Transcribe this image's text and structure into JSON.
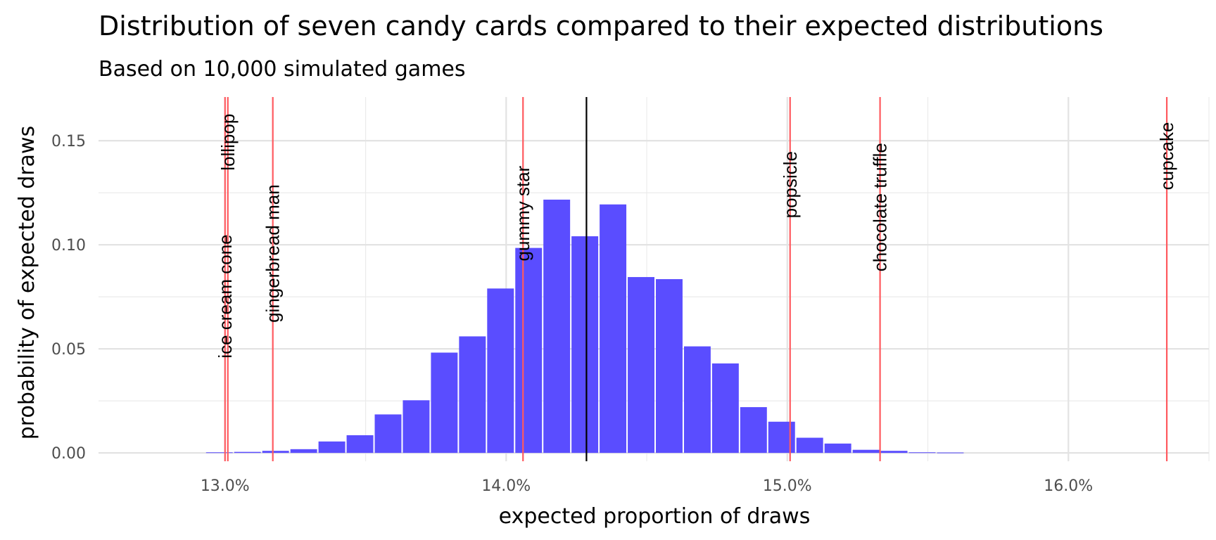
{
  "chart_data": {
    "type": "bar",
    "title": "Distribution of seven candy cards compared to their expected distributions",
    "subtitle": "Based on 10,000 simulated games",
    "xlabel": "expected proportion of draws",
    "ylabel": "probability of expected draws",
    "xlim": [
      12.55,
      16.5
    ],
    "ylim": [
      -0.004,
      0.171
    ],
    "x_ticks": [
      {
        "value": 13.0,
        "label": "13.0%"
      },
      {
        "value": 14.0,
        "label": "14.0%"
      },
      {
        "value": 15.0,
        "label": "15.0%"
      },
      {
        "value": 16.0,
        "label": "16.0%"
      }
    ],
    "y_ticks": [
      {
        "value": 0.0,
        "label": "0.00"
      },
      {
        "value": 0.05,
        "label": "0.05"
      },
      {
        "value": 0.1,
        "label": "0.10"
      },
      {
        "value": 0.15,
        "label": "0.15"
      }
    ],
    "grid": true,
    "bar_color": "#5a4dff",
    "bin_width": 0.1,
    "bins": [
      {
        "x": 12.98,
        "y": 0.0003
      },
      {
        "x": 13.08,
        "y": 0.0005
      },
      {
        "x": 13.18,
        "y": 0.001
      },
      {
        "x": 13.28,
        "y": 0.0018
      },
      {
        "x": 13.38,
        "y": 0.0055
      },
      {
        "x": 13.48,
        "y": 0.0085
      },
      {
        "x": 13.58,
        "y": 0.0185
      },
      {
        "x": 13.68,
        "y": 0.0253
      },
      {
        "x": 13.78,
        "y": 0.0482
      },
      {
        "x": 13.88,
        "y": 0.056
      },
      {
        "x": 13.98,
        "y": 0.079
      },
      {
        "x": 14.08,
        "y": 0.0985
      },
      {
        "x": 14.18,
        "y": 0.1217
      },
      {
        "x": 14.28,
        "y": 0.1041
      },
      {
        "x": 14.38,
        "y": 0.1194
      },
      {
        "x": 14.48,
        "y": 0.0845
      },
      {
        "x": 14.58,
        "y": 0.0835
      },
      {
        "x": 14.68,
        "y": 0.0512
      },
      {
        "x": 14.78,
        "y": 0.043
      },
      {
        "x": 14.88,
        "y": 0.022
      },
      {
        "x": 14.98,
        "y": 0.015
      },
      {
        "x": 15.08,
        "y": 0.0073
      },
      {
        "x": 15.18,
        "y": 0.0045
      },
      {
        "x": 15.28,
        "y": 0.0015
      },
      {
        "x": 15.38,
        "y": 0.001
      },
      {
        "x": 15.48,
        "y": 0.0003
      },
      {
        "x": 15.58,
        "y": 0.0002
      }
    ],
    "expected_line": {
      "x": 14.2857,
      "color": "#000000"
    },
    "candy_lines": [
      {
        "name": "ice cream cone",
        "x": 13.0,
        "label_top": 0.105,
        "color": "#ff5a5f"
      },
      {
        "name": "lollipop",
        "x": 13.01,
        "label_top": 0.163,
        "color": "#ff5a5f"
      },
      {
        "name": "gingerbread man",
        "x": 13.17,
        "label_top": 0.129,
        "color": "#ff5a5f"
      },
      {
        "name": "gummy star",
        "x": 14.06,
        "label_top": 0.138,
        "color": "#ff5a5f"
      },
      {
        "name": "popsicle",
        "x": 15.01,
        "label_top": 0.145,
        "color": "#ff5a5f"
      },
      {
        "name": "chocolate truffle",
        "x": 15.33,
        "label_top": 0.149,
        "color": "#ff5a5f"
      },
      {
        "name": "cupcake",
        "x": 16.35,
        "label_top": 0.159,
        "color": "#ff5a5f"
      }
    ]
  }
}
